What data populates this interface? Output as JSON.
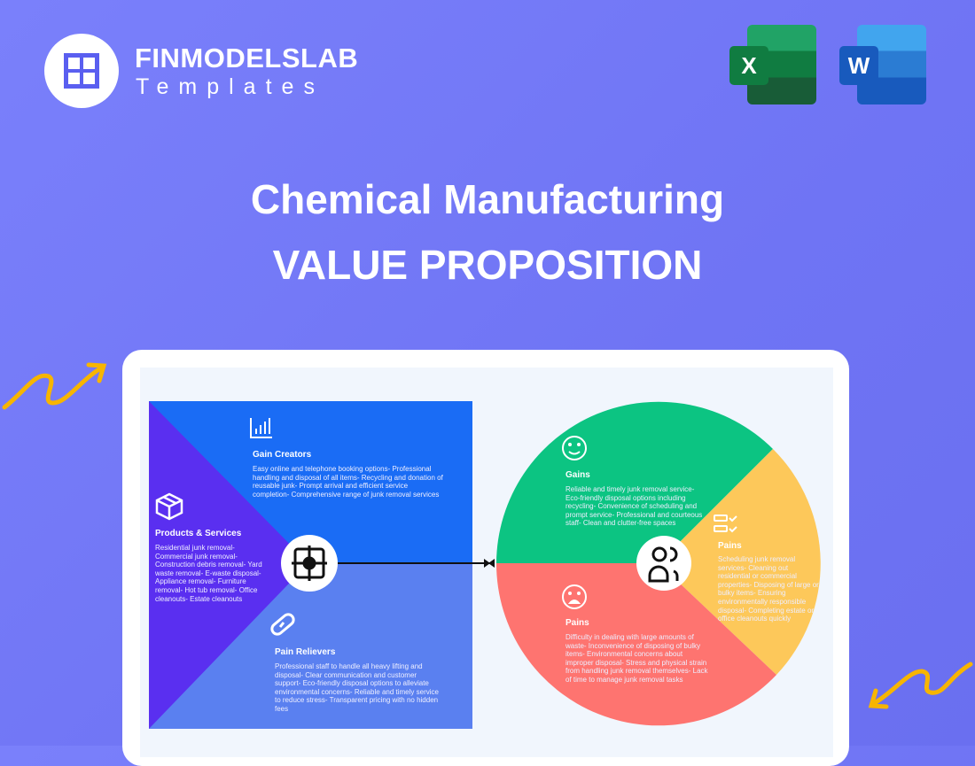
{
  "brand": {
    "name": "FINMODELSLAB",
    "sub": "Templates"
  },
  "apps": {
    "excel": "X",
    "word": "W"
  },
  "title": {
    "line1": "Chemical Manufacturing",
    "line2": "VALUE PROPOSITION"
  },
  "colors": {
    "background": "#7378f5",
    "gain_creators": "#1a6cf5",
    "pain_relievers": "#5a80f0",
    "products": "#5a2ff0",
    "gains": "#0cc482",
    "pains_bottom": "#fe7470",
    "pains_right": "#fdc85a",
    "arrow_accent": "#f7b500"
  },
  "left": {
    "gain_creators": {
      "title": "Gain Creators",
      "text": "Easy online and telephone booking options- Professional handling and disposal of all items- Recycling and donation of reusable junk- Prompt arrival and efficient service completion- Comprehensive range of junk removal services",
      "icon": "bar-chart-icon"
    },
    "products": {
      "title": "Products & Services",
      "text": "Residential junk removal- Commercial junk removal- Construction debris removal- Yard waste removal- E-waste disposal- Appliance removal- Furniture removal- Hot tub removal- Office cleanouts- Estate cleanouts",
      "icon": "box-icon"
    },
    "pain_relievers": {
      "title": "Pain Relievers",
      "text": "Professional staff to handle all heavy lifting and disposal- Clear communication and customer support- Eco-friendly disposal options to alleviate environmental concerns- Reliable and timely service to reduce stress- Transparent pricing with no hidden fees",
      "icon": "pill-icon"
    }
  },
  "right": {
    "gains": {
      "title": "Gains",
      "text": "Reliable and timely junk removal service- Eco-friendly disposal options including recycling- Convenience of scheduling and prompt service- Professional and courteous staff- Clean and clutter-free spaces",
      "icon": "smile-icon"
    },
    "jobs": {
      "title": "Pains",
      "text": "Scheduling junk removal services- Cleaning out residential or commercial properties- Disposing of large or bulky items- Ensuring environmentally responsible disposal- Completing estate or office cleanouts quickly",
      "icon": "checklist-icon"
    },
    "pains": {
      "title": "Pains",
      "text": "Difficulty in dealing with large amounts of waste- Inconvenience of disposing of bulky items- Environmental concerns about improper disposal- Stress and physical strain from handling junk removal themselves- Lack of time to manage junk removal tasks",
      "icon": "sad-icon"
    }
  }
}
